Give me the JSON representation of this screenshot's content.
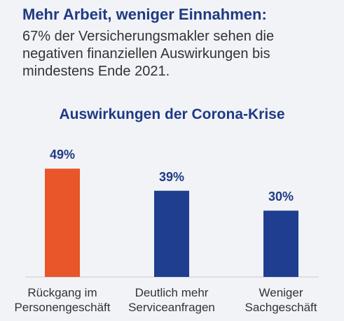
{
  "chart_data": {
    "type": "bar",
    "headline": "Mehr Arbeit, weniger Einnahmen:",
    "subtitle": "67% der Versicherungsmakler sehen die negativen finanziellen Auswirkungen bis mindestens Ende 2021.",
    "title": "Auswirkungen der Corona-Krise",
    "categories": [
      "Rückgang im Personengeschäft",
      "Deutlich mehr Serviceanfragen",
      "Weniger Sachgeschäft"
    ],
    "values": [
      49,
      39,
      30
    ],
    "value_labels": [
      "49%",
      "39%",
      "30%"
    ],
    "colors": [
      "#e8562a",
      "#1f3e8f",
      "#1f3e8f"
    ]
  }
}
